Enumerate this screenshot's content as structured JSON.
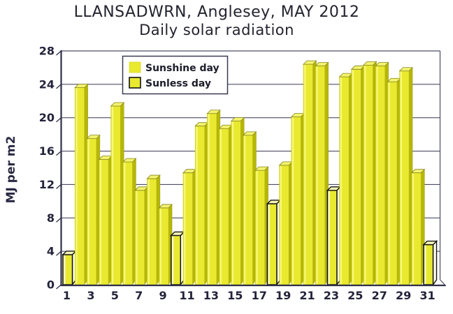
{
  "chart_data": {
    "type": "bar",
    "title_line1": "LLANSADWRN, Anglesey, MAY 2012",
    "title_line2": "Daily solar radiation",
    "ylabel": "MJ per m2",
    "xlabel": "",
    "ylim": [
      0,
      28
    ],
    "yticks": [
      0,
      4,
      8,
      12,
      16,
      20,
      24,
      28
    ],
    "xticks": [
      1,
      3,
      5,
      7,
      9,
      11,
      13,
      15,
      17,
      19,
      21,
      23,
      25,
      27,
      29,
      31
    ],
    "x": [
      1,
      2,
      3,
      4,
      5,
      6,
      7,
      8,
      9,
      10,
      11,
      12,
      13,
      14,
      15,
      16,
      17,
      18,
      19,
      20,
      21,
      22,
      23,
      24,
      25,
      26,
      27,
      28,
      29,
      30,
      31
    ],
    "values": [
      3.6,
      23.6,
      17.5,
      15.0,
      21.4,
      14.7,
      11.3,
      12.7,
      9.2,
      5.9,
      13.4,
      19.0,
      20.5,
      18.7,
      19.6,
      17.9,
      13.7,
      9.7,
      14.3,
      20.1,
      26.4,
      26.2,
      11.3,
      24.9,
      25.8,
      26.3,
      26.2,
      24.3,
      25.6,
      13.4,
      4.8
    ],
    "sunless_days": [
      1,
      10,
      18,
      23,
      31
    ],
    "grid": true,
    "legend_position": "top-left",
    "legend": [
      {
        "label": "Sunshine day",
        "style": "sunshine"
      },
      {
        "label": "Sunless day",
        "style": "sunless"
      }
    ]
  },
  "colors": {
    "background": "#ffffff",
    "bar_face": "#e9e930",
    "bar_face_highlight": "#f8f87c",
    "bar_side": "#b6b60a",
    "bar_flap": "#f3f36e",
    "sunless_side": "#fdfdf0",
    "sunless_flap": "#f6f6b8",
    "sunless_highlight": "#fcfcd8",
    "outline": "#141414",
    "axis": "#30304a",
    "grid": "#4d4d66",
    "text": "#23232f"
  }
}
